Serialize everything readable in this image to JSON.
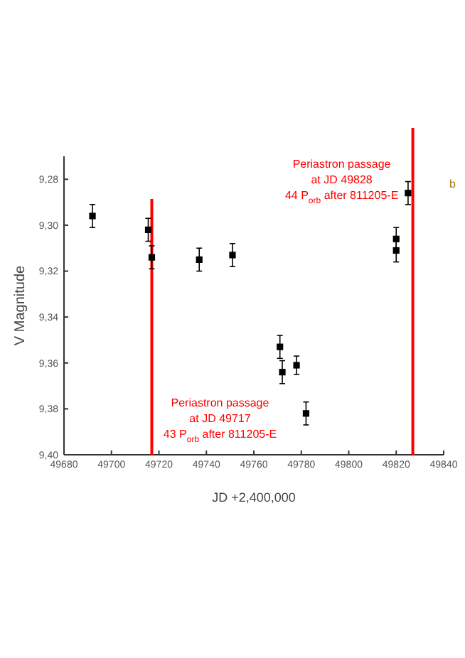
{
  "chart_data": {
    "type": "scatter",
    "xlabel": "JD +2,400,000",
    "ylabel": "V Magnitude",
    "x": [
      49692,
      49715.5,
      49717,
      49737,
      49751,
      49771,
      49772,
      49778,
      49782,
      49820,
      49820,
      49825
    ],
    "series": [
      {
        "color": "#000000",
        "values": [
          9.296,
          9.302,
          9.314,
          9.315,
          9.313,
          9.353,
          9.364,
          9.361,
          9.382,
          9.306,
          9.311,
          9.286
        ],
        "errors": [
          0.005,
          0.005,
          0.005,
          0.005,
          0.005,
          0.005,
          0.005,
          0.004,
          0.005,
          0.005,
          0.005,
          0.005
        ]
      }
    ],
    "xlim": [
      49680,
      49840
    ],
    "xticks": [
      49680,
      49700,
      49720,
      49740,
      49760,
      49780,
      49800,
      49820,
      49840
    ],
    "ylim": [
      9.4,
      9.27
    ],
    "yticks": [
      {
        "value": 9.28,
        "label": "9,28"
      },
      {
        "value": 9.3,
        "label": "9,30"
      },
      {
        "value": 9.32,
        "label": "9,32"
      },
      {
        "value": 9.34,
        "label": "9,34"
      },
      {
        "value": 9.36,
        "label": "9,36"
      },
      {
        "value": 9.38,
        "label": "9,38"
      },
      {
        "value": 9.4,
        "label": "9,40"
      }
    ],
    "ref_lines": [
      {
        "axis": "x",
        "value": 49717,
        "label": "Periastron passage\nat JD 49717\n43 P$_{orb}$ after 811205-E",
        "color": "#ff0000"
      },
      {
        "axis": "x",
        "value": 49827,
        "label": "Periastron passage\nat JD 49828\n44 P$_{orb}$ after 811205-E",
        "color": "#ff0000"
      }
    ],
    "annotations": [
      "b"
    ],
    "marker": "square",
    "grid": false
  }
}
